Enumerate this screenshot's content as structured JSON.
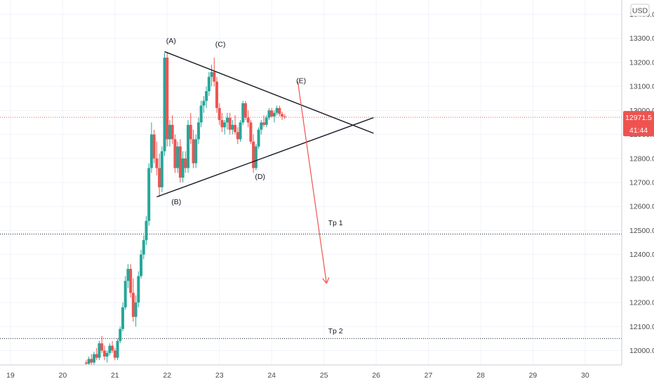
{
  "chart_data": {
    "type": "candlestick",
    "currency": "USD",
    "x_axis": {
      "ticks": [
        "19",
        "20",
        "21",
        "22",
        "23",
        "24",
        "25",
        "26",
        "27",
        "28",
        "29",
        "30"
      ],
      "range": [
        18.8,
        30.7
      ]
    },
    "y_axis": {
      "ticks": [
        "12000.0",
        "12100.0",
        "12200.0",
        "12300.0",
        "12400.0",
        "12500.0",
        "12600.0",
        "12700.0",
        "12800.0",
        "12900.0",
        "13000.0",
        "13100.0",
        "13200.0",
        "13300.0",
        "13400.0"
      ],
      "range": [
        11940,
        13460
      ]
    },
    "last_price": "12971.5",
    "countdown": "41:44",
    "colors": {
      "up": "#26a69a",
      "down": "#ef5350",
      "price_line": "#ef5350",
      "drawing": "#131722",
      "arrow": "#ef5350",
      "grid": "#f0f3fa"
    },
    "candles": [
      [
        20.45,
        11950,
        11960,
        11930,
        11945
      ],
      [
        20.5,
        11945,
        11975,
        11930,
        11965
      ],
      [
        20.55,
        11965,
        11985,
        11940,
        11950
      ],
      [
        20.6,
        11950,
        11995,
        11940,
        11985
      ],
      [
        20.65,
        11985,
        12010,
        11960,
        11970
      ],
      [
        20.7,
        11970,
        12040,
        11960,
        12030
      ],
      [
        20.75,
        12030,
        12060,
        11990,
        12000
      ],
      [
        20.8,
        12000,
        12020,
        11960,
        11975
      ],
      [
        20.85,
        11975,
        12000,
        11950,
        11990
      ],
      [
        20.9,
        11990,
        12030,
        11980,
        12020
      ],
      [
        20.95,
        12020,
        12040,
        11990,
        12000
      ],
      [
        21.0,
        12000,
        12010,
        11960,
        11970
      ],
      [
        21.05,
        11970,
        12050,
        11960,
        12040
      ],
      [
        21.1,
        12040,
        12100,
        12030,
        12090
      ],
      [
        21.15,
        12090,
        12200,
        12080,
        12180
      ],
      [
        21.2,
        12180,
        12310,
        12170,
        12290
      ],
      [
        21.25,
        12290,
        12360,
        12260,
        12340
      ],
      [
        21.3,
        12340,
        12360,
        12220,
        12240
      ],
      [
        21.35,
        12240,
        12300,
        12120,
        12140
      ],
      [
        21.4,
        12140,
        12230,
        12100,
        12200
      ],
      [
        21.45,
        12200,
        12330,
        12180,
        12310
      ],
      [
        21.5,
        12310,
        12420,
        12300,
        12400
      ],
      [
        21.55,
        12400,
        12480,
        12380,
        12460
      ],
      [
        21.6,
        12460,
        12560,
        12440,
        12540
      ],
      [
        21.65,
        12540,
        12780,
        12520,
        12760
      ],
      [
        21.7,
        12760,
        12950,
        12740,
        12900
      ],
      [
        21.75,
        12900,
        12920,
        12780,
        12800
      ],
      [
        21.8,
        12800,
        12870,
        12730,
        12760
      ],
      [
        21.85,
        12760,
        12820,
        12640,
        12680
      ],
      [
        21.9,
        12680,
        12850,
        12660,
        12830
      ],
      [
        21.95,
        12830,
        13240,
        12810,
        13220
      ],
      [
        22.0,
        13220,
        13240,
        12850,
        12880
      ],
      [
        22.05,
        12880,
        12960,
        12850,
        12940
      ],
      [
        22.1,
        12940,
        12980,
        12860,
        12880
      ],
      [
        22.15,
        12880,
        12900,
        12740,
        12760
      ],
      [
        22.2,
        12760,
        12870,
        12740,
        12850
      ],
      [
        22.25,
        12850,
        12880,
        12700,
        12720
      ],
      [
        22.3,
        12720,
        12830,
        12700,
        12800
      ],
      [
        22.35,
        12800,
        12830,
        12740,
        12760
      ],
      [
        22.4,
        12760,
        12960,
        12740,
        12940
      ],
      [
        22.45,
        12940,
        12990,
        12860,
        12880
      ],
      [
        22.5,
        12880,
        12920,
        12760,
        12780
      ],
      [
        22.55,
        12780,
        12900,
        12760,
        12880
      ],
      [
        22.6,
        12880,
        12970,
        12860,
        12950
      ],
      [
        22.65,
        12950,
        13040,
        12930,
        13020
      ],
      [
        22.7,
        13020,
        13060,
        12990,
        13040
      ],
      [
        22.75,
        13040,
        13100,
        13010,
        13080
      ],
      [
        22.8,
        13080,
        13160,
        13060,
        13140
      ],
      [
        22.85,
        13140,
        13190,
        13100,
        13160
      ],
      [
        22.9,
        13160,
        13220,
        13100,
        13120
      ],
      [
        22.95,
        13120,
        13140,
        12990,
        13010
      ],
      [
        23.0,
        13010,
        13030,
        12940,
        12960
      ],
      [
        23.05,
        12960,
        12990,
        12910,
        12930
      ],
      [
        23.1,
        12930,
        12960,
        12900,
        12950
      ],
      [
        23.15,
        12950,
        12990,
        12920,
        12970
      ],
      [
        23.2,
        12970,
        12990,
        12900,
        12920
      ],
      [
        23.25,
        12920,
        12960,
        12900,
        12940
      ],
      [
        23.3,
        12940,
        12980,
        12900,
        12910
      ],
      [
        23.35,
        12910,
        12930,
        12860,
        12880
      ],
      [
        23.4,
        12880,
        12960,
        12870,
        12950
      ],
      [
        23.45,
        12950,
        13040,
        12940,
        13030
      ],
      [
        23.5,
        13030,
        13040,
        12960,
        12970
      ],
      [
        23.55,
        12970,
        13000,
        12930,
        12950
      ],
      [
        23.6,
        12950,
        12960,
        12860,
        12870
      ],
      [
        23.65,
        12870,
        12900,
        12740,
        12760
      ],
      [
        23.7,
        12760,
        12860,
        12750,
        12850
      ],
      [
        23.75,
        12850,
        12930,
        12840,
        12920
      ],
      [
        23.8,
        12920,
        12960,
        12900,
        12950
      ],
      [
        23.85,
        12950,
        12980,
        12930,
        12940
      ],
      [
        23.9,
        12940,
        12980,
        12930,
        12970
      ],
      [
        23.95,
        12970,
        13010,
        12960,
        13000
      ],
      [
        24.0,
        13000,
        13010,
        12970,
        12975
      ],
      [
        24.05,
        12975,
        13000,
        12950,
        12990
      ],
      [
        24.1,
        12990,
        13020,
        12980,
        13010
      ],
      [
        24.15,
        13010,
        13020,
        12975,
        12985
      ],
      [
        24.2,
        12985,
        12995,
        12960,
        12975
      ],
      [
        24.25,
        12975,
        12985,
        12965,
        12971.5
      ]
    ],
    "annotations": [
      {
        "text": "(A)",
        "x": 21.98,
        "y": 13280
      },
      {
        "text": "(B)",
        "x": 22.08,
        "y": 12610
      },
      {
        "text": "(C)",
        "x": 22.92,
        "y": 13265
      },
      {
        "text": "(D)",
        "x": 23.68,
        "y": 12715
      },
      {
        "text": "(E)",
        "x": 24.47,
        "y": 13113
      },
      {
        "text": "Tp 1",
        "x": 25.08,
        "y": 12522
      },
      {
        "text": "Tp 2",
        "x": 25.08,
        "y": 12072
      }
    ],
    "trendlines": [
      {
        "from": [
          21.95,
          13245
        ],
        "to": [
          25.95,
          12905
        ]
      },
      {
        "from": [
          21.8,
          12640
        ],
        "to": [
          25.95,
          12970
        ]
      }
    ],
    "horizontal_levels": [
      {
        "name": "Tp 1",
        "y": 12485
      },
      {
        "name": "Tp 2",
        "y": 12050
      }
    ],
    "projection_arrow": {
      "from": [
        24.5,
        13120
      ],
      "to": [
        25.05,
        12280
      ]
    }
  }
}
